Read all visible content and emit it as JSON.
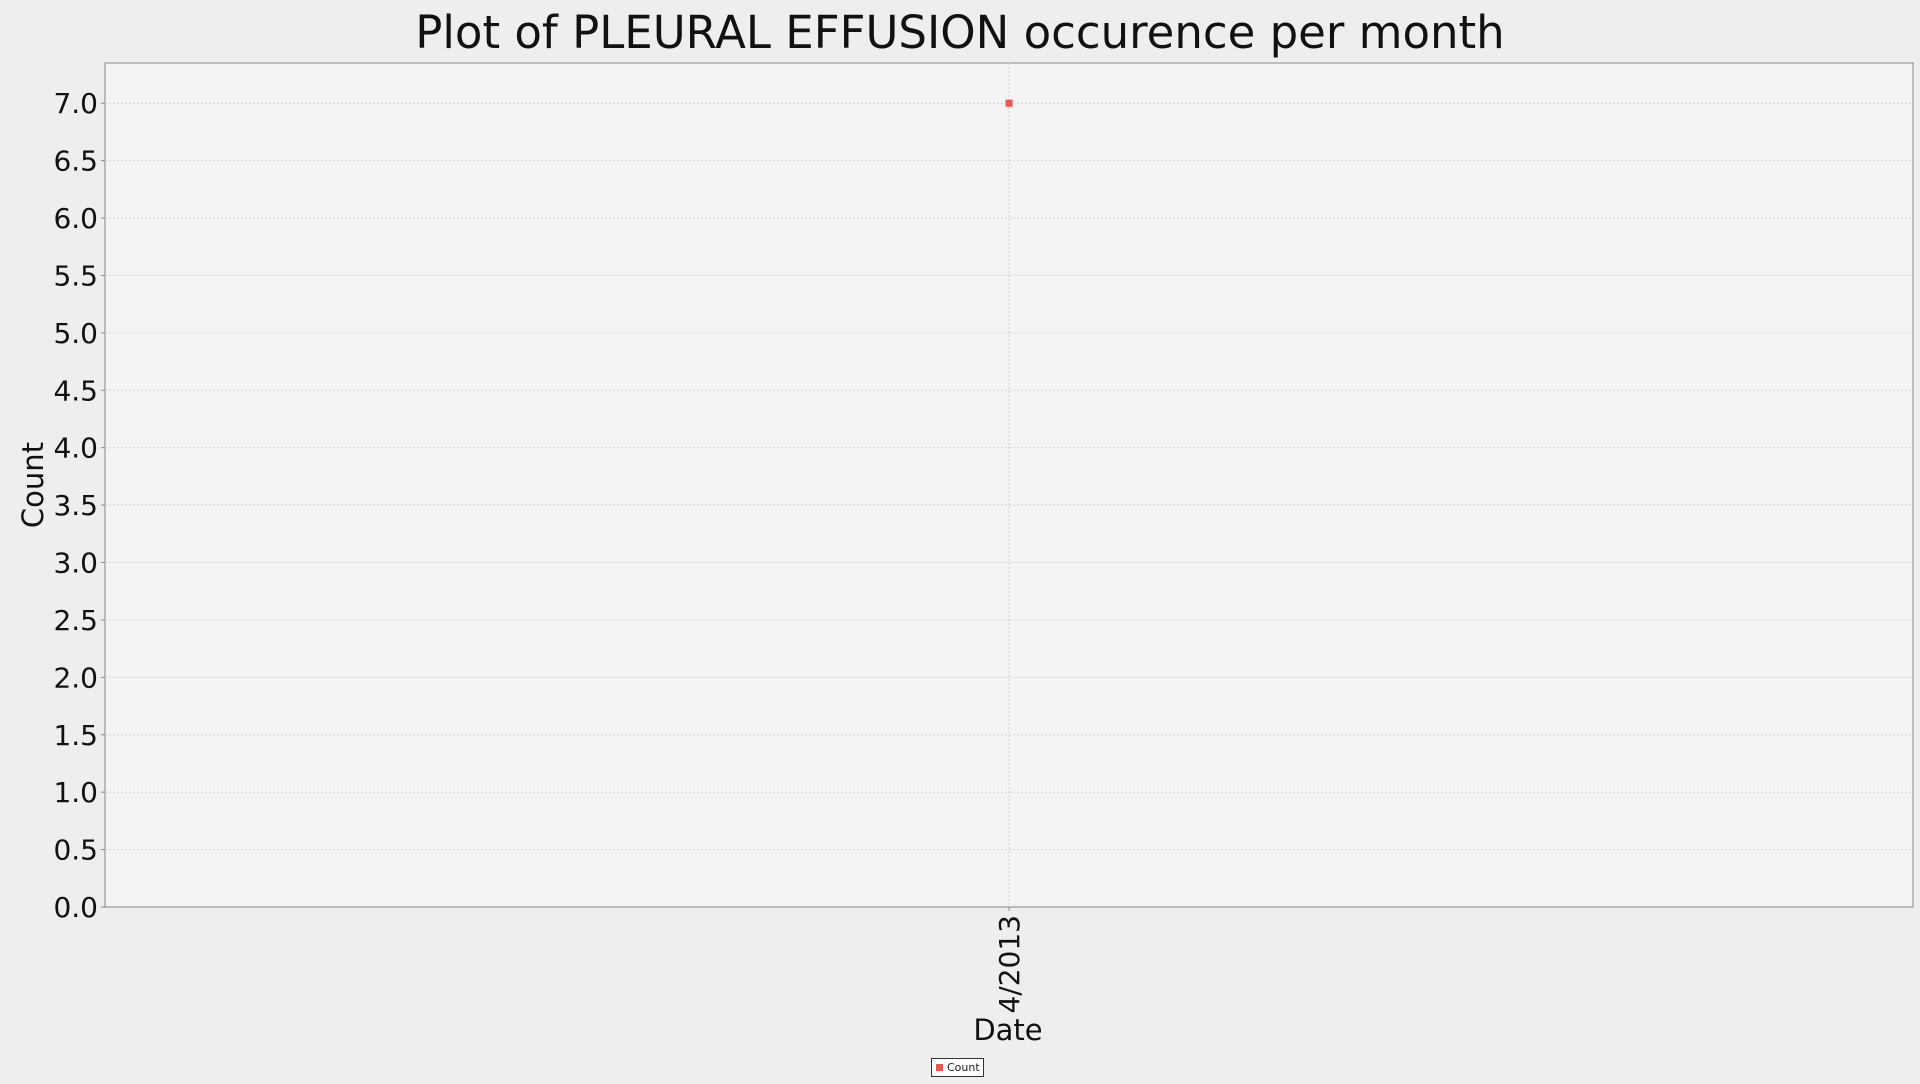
{
  "chart_data": {
    "type": "scatter",
    "title": "Plot of PLEURAL EFFUSION occurence per month",
    "xlabel": "Date",
    "ylabel": "Count",
    "x_categories": [
      "4/2013"
    ],
    "series": [
      {
        "name": "Count",
        "color": "#ee5555",
        "points": [
          {
            "x": "4/2013",
            "y": 7.0
          }
        ]
      }
    ],
    "ylim": [
      0.0,
      7.35
    ],
    "yticks": [
      "0.0",
      "0.5",
      "1.0",
      "1.5",
      "2.0",
      "2.5",
      "3.0",
      "3.5",
      "4.0",
      "4.5",
      "5.0",
      "5.5",
      "6.0",
      "6.5",
      "7.0"
    ],
    "grid": true,
    "legend_position": "bottom-center"
  },
  "colors": {
    "background": "#eeeeee",
    "plot_background": "#f4f4f4",
    "grid": "#d4d4d4",
    "axis": "#888888",
    "text": "#111111"
  }
}
